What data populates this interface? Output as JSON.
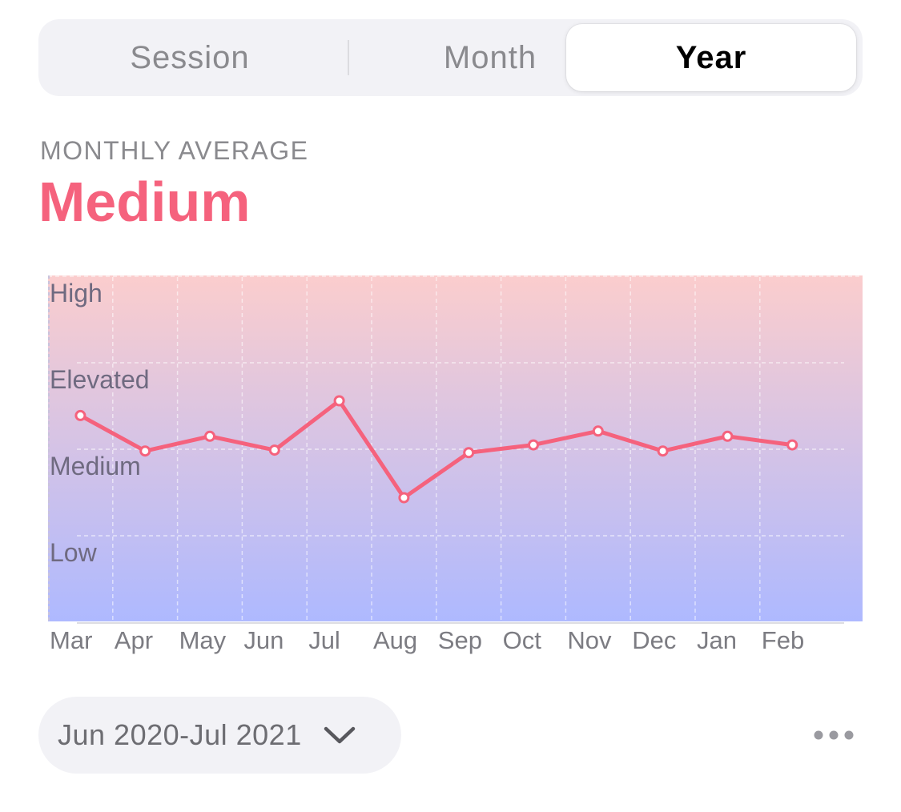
{
  "segmented": {
    "tabs": [
      "Session",
      "Month",
      "Year"
    ],
    "selected": "Year"
  },
  "summary": {
    "caption": "MONTHLY AVERAGE",
    "value": "Medium",
    "value_color": "#f5627d"
  },
  "chart_data": {
    "type": "line",
    "title": "",
    "xlabel": "",
    "ylabel": "",
    "categories": [
      "Mar",
      "Apr",
      "May",
      "Jun",
      "Jul",
      "Aug",
      "Sep",
      "Oct",
      "Nov",
      "Dec",
      "Jan",
      "Feb"
    ],
    "y_levels": [
      "High",
      "Elevated",
      "Medium",
      "Low"
    ],
    "ylim": [
      0,
      4
    ],
    "series": [
      {
        "values": [
          2.39,
          1.98,
          2.15,
          1.99,
          2.56,
          1.44,
          1.96,
          2.05,
          2.21,
          1.98,
          2.15,
          2.05
        ],
        "color": "#f5627d"
      }
    ],
    "gradient_top": "#fbcdcd",
    "gradient_bottom": "#aeb9ff",
    "grid": true,
    "legend": "none"
  },
  "range": {
    "label": "Jun 2020-Jul 2021"
  },
  "icons": {
    "range_chevron": "chevron-down-icon",
    "more": "more-horizontal-icon"
  }
}
